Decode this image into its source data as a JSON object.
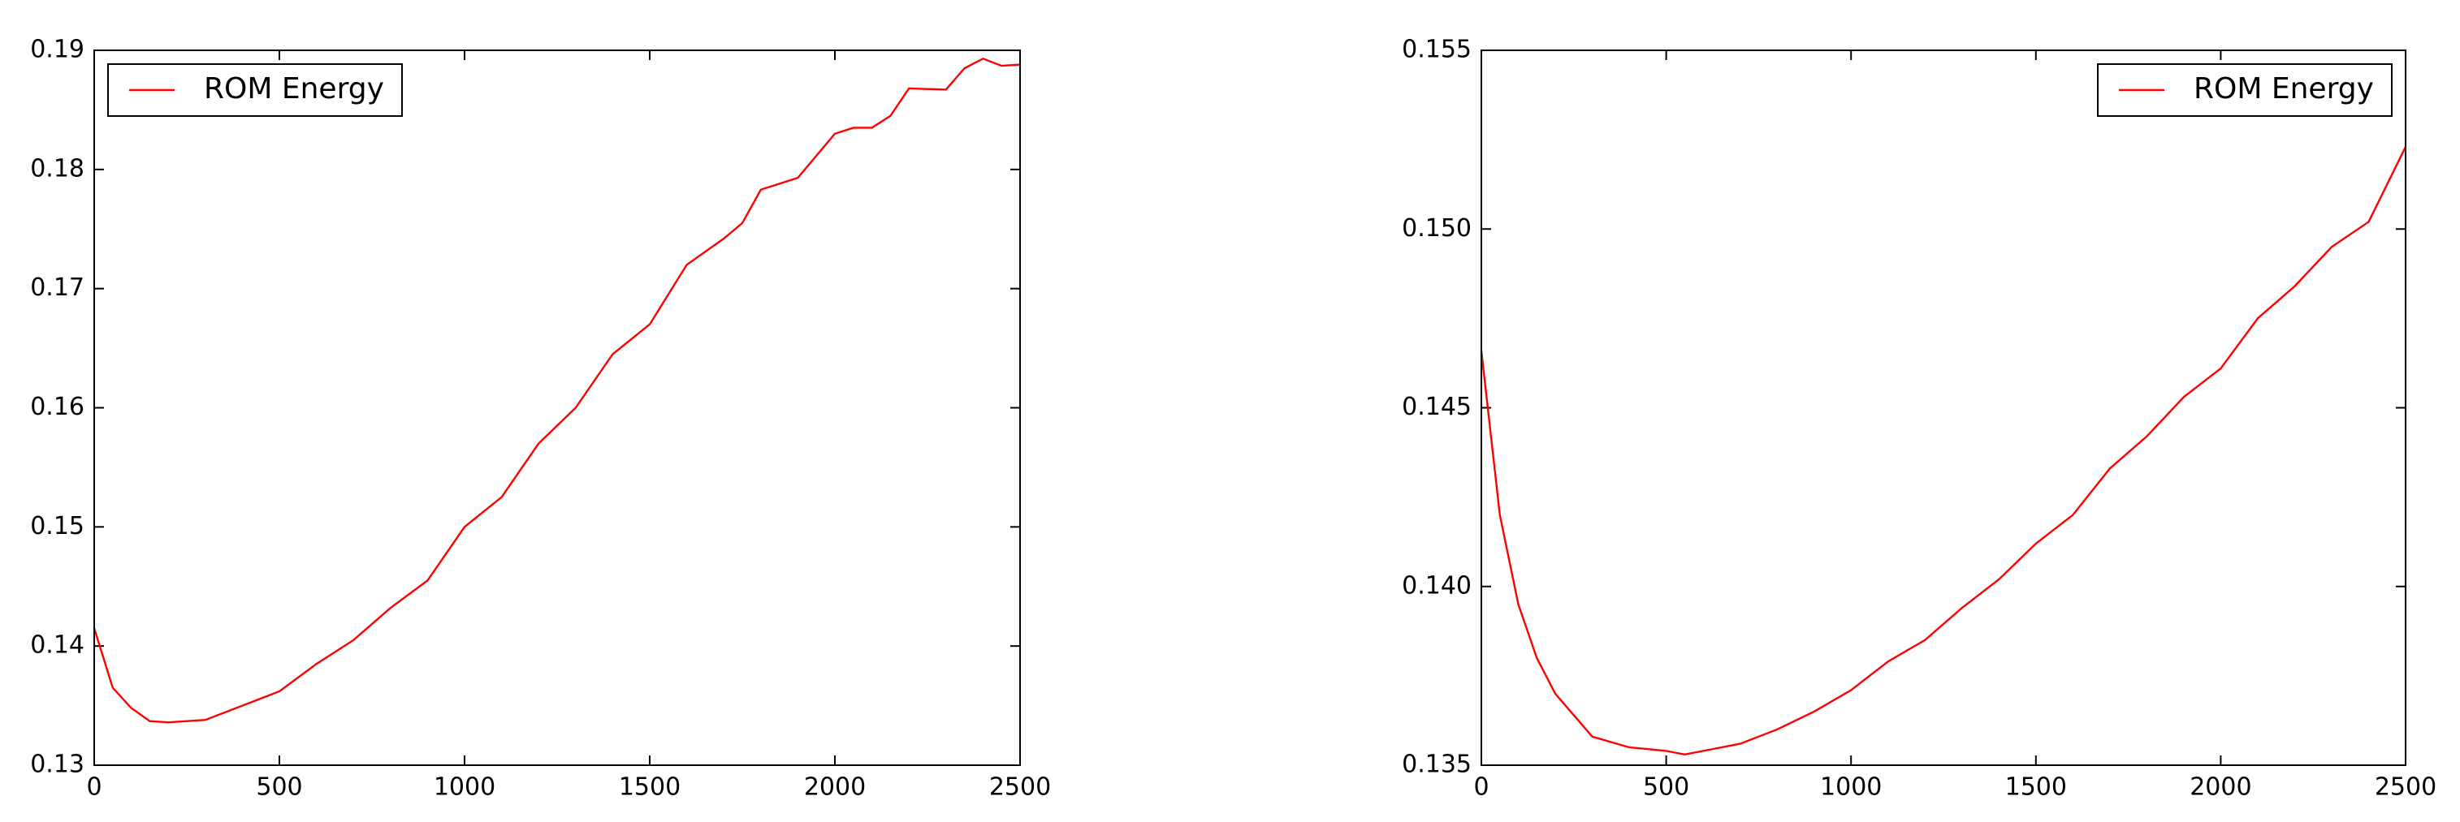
{
  "chart_data": [
    {
      "type": "line",
      "legend": "upper left",
      "x": [
        0,
        50,
        100,
        150,
        200,
        300,
        400,
        500,
        600,
        700,
        800,
        900,
        1000,
        1100,
        1200,
        1300,
        1400,
        1500,
        1550,
        1600,
        1700,
        1750,
        1800,
        1900,
        2000,
        2050,
        2100,
        2150,
        2200,
        2300,
        2350,
        2400,
        2450,
        2500
      ],
      "series": [
        {
          "name": "ROM Energy",
          "color": "#ff0000",
          "values": [
            0.1415,
            0.1365,
            0.1348,
            0.1337,
            0.1336,
            0.1338,
            0.135,
            0.1362,
            0.1385,
            0.1405,
            0.1432,
            0.1455,
            0.15,
            0.1525,
            0.157,
            0.16,
            0.1645,
            0.167,
            0.1695,
            0.172,
            0.1742,
            0.1755,
            0.1783,
            0.1793,
            0.183,
            0.1835,
            0.1835,
            0.1845,
            0.1868,
            0.1867,
            0.1885,
            0.1893,
            0.1887,
            0.1888
          ]
        }
      ],
      "xlim": [
        0,
        2500
      ],
      "xticks": [
        0,
        500,
        1000,
        1500,
        2000,
        2500
      ],
      "ylim": [
        0.13,
        0.19
      ],
      "yticks": [
        0.13,
        0.14,
        0.15,
        0.16,
        0.17,
        0.18,
        0.19
      ]
    },
    {
      "type": "line",
      "legend": "upper right",
      "x": [
        0,
        50,
        100,
        150,
        200,
        300,
        400,
        500,
        550,
        600,
        700,
        800,
        900,
        1000,
        1100,
        1200,
        1300,
        1400,
        1500,
        1600,
        1700,
        1800,
        1900,
        2000,
        2100,
        2200,
        2300,
        2400,
        2500
      ],
      "series": [
        {
          "name": "ROM Energy",
          "color": "#ff0000",
          "values": [
            0.1466,
            0.142,
            0.1395,
            0.138,
            0.137,
            0.1358,
            0.1355,
            0.1354,
            0.1353,
            0.1354,
            0.1356,
            0.136,
            0.1365,
            0.1371,
            0.1379,
            0.1385,
            0.1394,
            0.1402,
            0.1412,
            0.142,
            0.1433,
            0.1442,
            0.1453,
            0.1461,
            0.1475,
            0.1484,
            0.1495,
            0.1502,
            0.1523
          ]
        }
      ],
      "xlim": [
        0,
        2500
      ],
      "xticks": [
        0,
        500,
        1000,
        1500,
        2000,
        2500
      ],
      "ylim": [
        0.135,
        0.155
      ],
      "yticks": [
        0.135,
        {
          "value": 0.14,
          "label": "0.140"
        },
        0.145,
        {
          "value": 0.15,
          "label": "0.150"
        },
        0.155
      ]
    }
  ]
}
